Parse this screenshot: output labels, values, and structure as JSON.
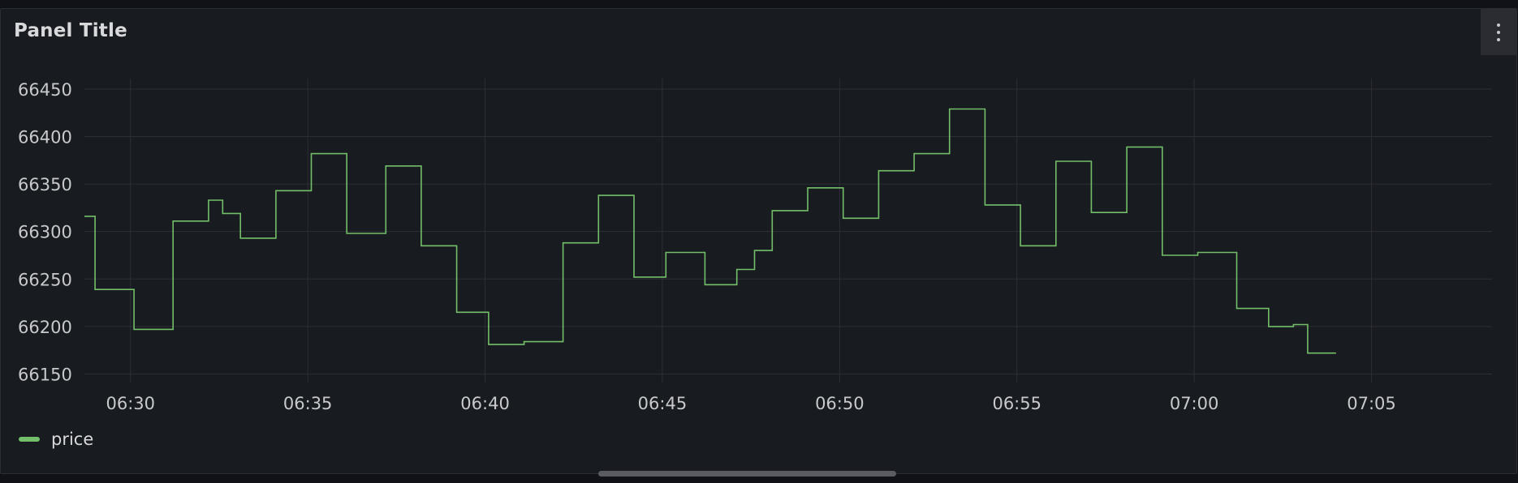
{
  "panel": {
    "title": "Panel Title",
    "menu_icon": "kebab-menu-icon"
  },
  "colors": {
    "series": "#73bf69",
    "grid": "#2c2f34",
    "tick_text": "#c7c9cc",
    "background": "#181b1f"
  },
  "chart_data": {
    "type": "line",
    "interpolation": "step",
    "x_unit": "time (HH:MM)",
    "xlim": [
      "06:28:42",
      "07:08:24"
    ],
    "ylim": [
      66141,
      66461
    ],
    "x_ticks": [
      "06:30",
      "06:35",
      "06:40",
      "06:45",
      "06:50",
      "06:55",
      "07:00",
      "07:05"
    ],
    "y_ticks": [
      66450,
      66400,
      66350,
      66300,
      66250,
      66200,
      66150
    ],
    "grid": true,
    "legend": "bottom-left",
    "series": [
      {
        "name": "price",
        "color": "#73bf69",
        "points": [
          [
            "06:28:42",
            66316
          ],
          [
            "06:29:00",
            66239
          ],
          [
            "06:30:06",
            66197
          ],
          [
            "06:31:12",
            66311
          ],
          [
            "06:32:12",
            66333
          ],
          [
            "06:32:36",
            66319
          ],
          [
            "06:33:06",
            66293
          ],
          [
            "06:34:06",
            66343
          ],
          [
            "06:35:06",
            66382
          ],
          [
            "06:36:06",
            66298
          ],
          [
            "06:37:12",
            66369
          ],
          [
            "06:38:12",
            66285
          ],
          [
            "06:39:12",
            66215
          ],
          [
            "06:40:06",
            66181
          ],
          [
            "06:41:06",
            66184
          ],
          [
            "06:42:12",
            66288
          ],
          [
            "06:43:12",
            66338
          ],
          [
            "06:44:12",
            66252
          ],
          [
            "06:45:06",
            66278
          ],
          [
            "06:46:12",
            66244
          ],
          [
            "06:47:06",
            66260
          ],
          [
            "06:47:36",
            66280
          ],
          [
            "06:48:06",
            66322
          ],
          [
            "06:49:06",
            66346
          ],
          [
            "06:50:06",
            66314
          ],
          [
            "06:51:06",
            66364
          ],
          [
            "06:52:06",
            66382
          ],
          [
            "06:53:06",
            66429
          ],
          [
            "06:54:06",
            66328
          ],
          [
            "06:55:06",
            66285
          ],
          [
            "06:56:06",
            66374
          ],
          [
            "06:57:06",
            66320
          ],
          [
            "06:58:06",
            66389
          ],
          [
            "06:59:06",
            66275
          ],
          [
            "07:00:06",
            66278
          ],
          [
            "07:01:12",
            66219
          ],
          [
            "07:02:06",
            66200
          ],
          [
            "07:02:48",
            66202
          ],
          [
            "07:03:12",
            66172
          ],
          [
            "07:04:00",
            66172
          ]
        ]
      }
    ]
  }
}
